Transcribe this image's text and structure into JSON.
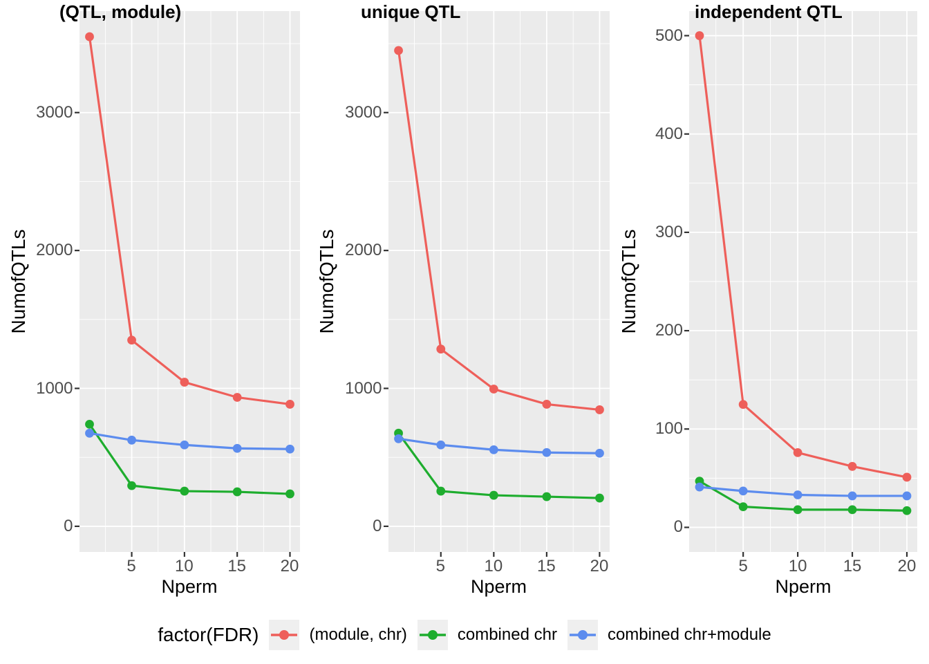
{
  "palette": {
    "red": "#ee5f5a",
    "green": "#1ead2e",
    "blue": "#5c8cee",
    "panel_bg": "#ebebeb",
    "grid": "#ffffff",
    "tick_label": "#4d4d4d",
    "tick_mark": "#333333",
    "legend_key_bg": "#efefef",
    "figure_bg": "#ffffff"
  },
  "legend": {
    "title": "factor(FDR)",
    "position": "bottom",
    "items": [
      {
        "label": "(module, chr)",
        "color_key": "red"
      },
      {
        "label": "combined chr",
        "color_key": "green"
      },
      {
        "label": "combined chr+module",
        "color_key": "blue"
      }
    ]
  },
  "chart_data": [
    {
      "type": "line",
      "title": "(QTL, module)",
      "xlabel": "Nperm",
      "ylabel": "NumofQTLs",
      "x": [
        1,
        5,
        10,
        15,
        20
      ],
      "series": [
        {
          "name": "(module, chr)",
          "color_key": "red",
          "values": [
            3550,
            1350,
            1045,
            935,
            885
          ]
        },
        {
          "name": "combined chr",
          "color_key": "green",
          "values": [
            740,
            295,
            255,
            250,
            235
          ]
        },
        {
          "name": "combined chr+module",
          "color_key": "blue",
          "values": [
            675,
            625,
            590,
            565,
            560
          ]
        }
      ],
      "x_ticks": [
        5,
        10,
        15,
        20
      ],
      "x_minor": [
        2.5,
        7.5,
        12.5,
        17.5
      ],
      "y_ticks": [
        0,
        1000,
        2000,
        3000
      ],
      "y_minor": [
        500,
        1500,
        2500,
        3500
      ],
      "xlim": [
        0.05,
        20.95
      ],
      "ylim": [
        -186,
        3736
      ],
      "grid": true
    },
    {
      "type": "line",
      "title": "unique QTL",
      "xlabel": "Nperm",
      "ylabel": "NumofQTLs",
      "x": [
        1,
        5,
        10,
        15,
        20
      ],
      "series": [
        {
          "name": "(module, chr)",
          "color_key": "red",
          "values": [
            3450,
            1285,
            995,
            885,
            845
          ]
        },
        {
          "name": "combined chr",
          "color_key": "green",
          "values": [
            675,
            255,
            225,
            215,
            205
          ]
        },
        {
          "name": "combined chr+module",
          "color_key": "blue",
          "values": [
            635,
            590,
            555,
            535,
            530
          ]
        }
      ],
      "x_ticks": [
        5,
        10,
        15,
        20
      ],
      "x_minor": [
        2.5,
        7.5,
        12.5,
        17.5
      ],
      "y_ticks": [
        0,
        1000,
        2000,
        3000
      ],
      "y_minor": [
        500,
        1500,
        2500,
        3500
      ],
      "xlim": [
        0.05,
        20.95
      ],
      "ylim": [
        -186,
        3736
      ],
      "grid": true
    },
    {
      "type": "line",
      "title": "independent QTL",
      "xlabel": "Nperm",
      "ylabel": "NumofQTLs",
      "x": [
        1,
        5,
        10,
        15,
        20
      ],
      "series": [
        {
          "name": "(module, chr)",
          "color_key": "red",
          "values": [
            500,
            125,
            76,
            62,
            51
          ]
        },
        {
          "name": "combined chr",
          "color_key": "green",
          "values": [
            47,
            21,
            18,
            18,
            17
          ]
        },
        {
          "name": "combined chr+module",
          "color_key": "blue",
          "values": [
            41,
            37,
            33,
            32,
            32
          ]
        }
      ],
      "x_ticks": [
        5,
        10,
        15,
        20
      ],
      "x_minor": [
        2.5,
        7.5,
        12.5,
        17.5
      ],
      "y_ticks": [
        0,
        100,
        200,
        300,
        400,
        500
      ],
      "y_minor": [
        50,
        150,
        250,
        350,
        450
      ],
      "xlim": [
        0.05,
        20.95
      ],
      "ylim": [
        -25,
        525
      ],
      "grid": true
    }
  ]
}
